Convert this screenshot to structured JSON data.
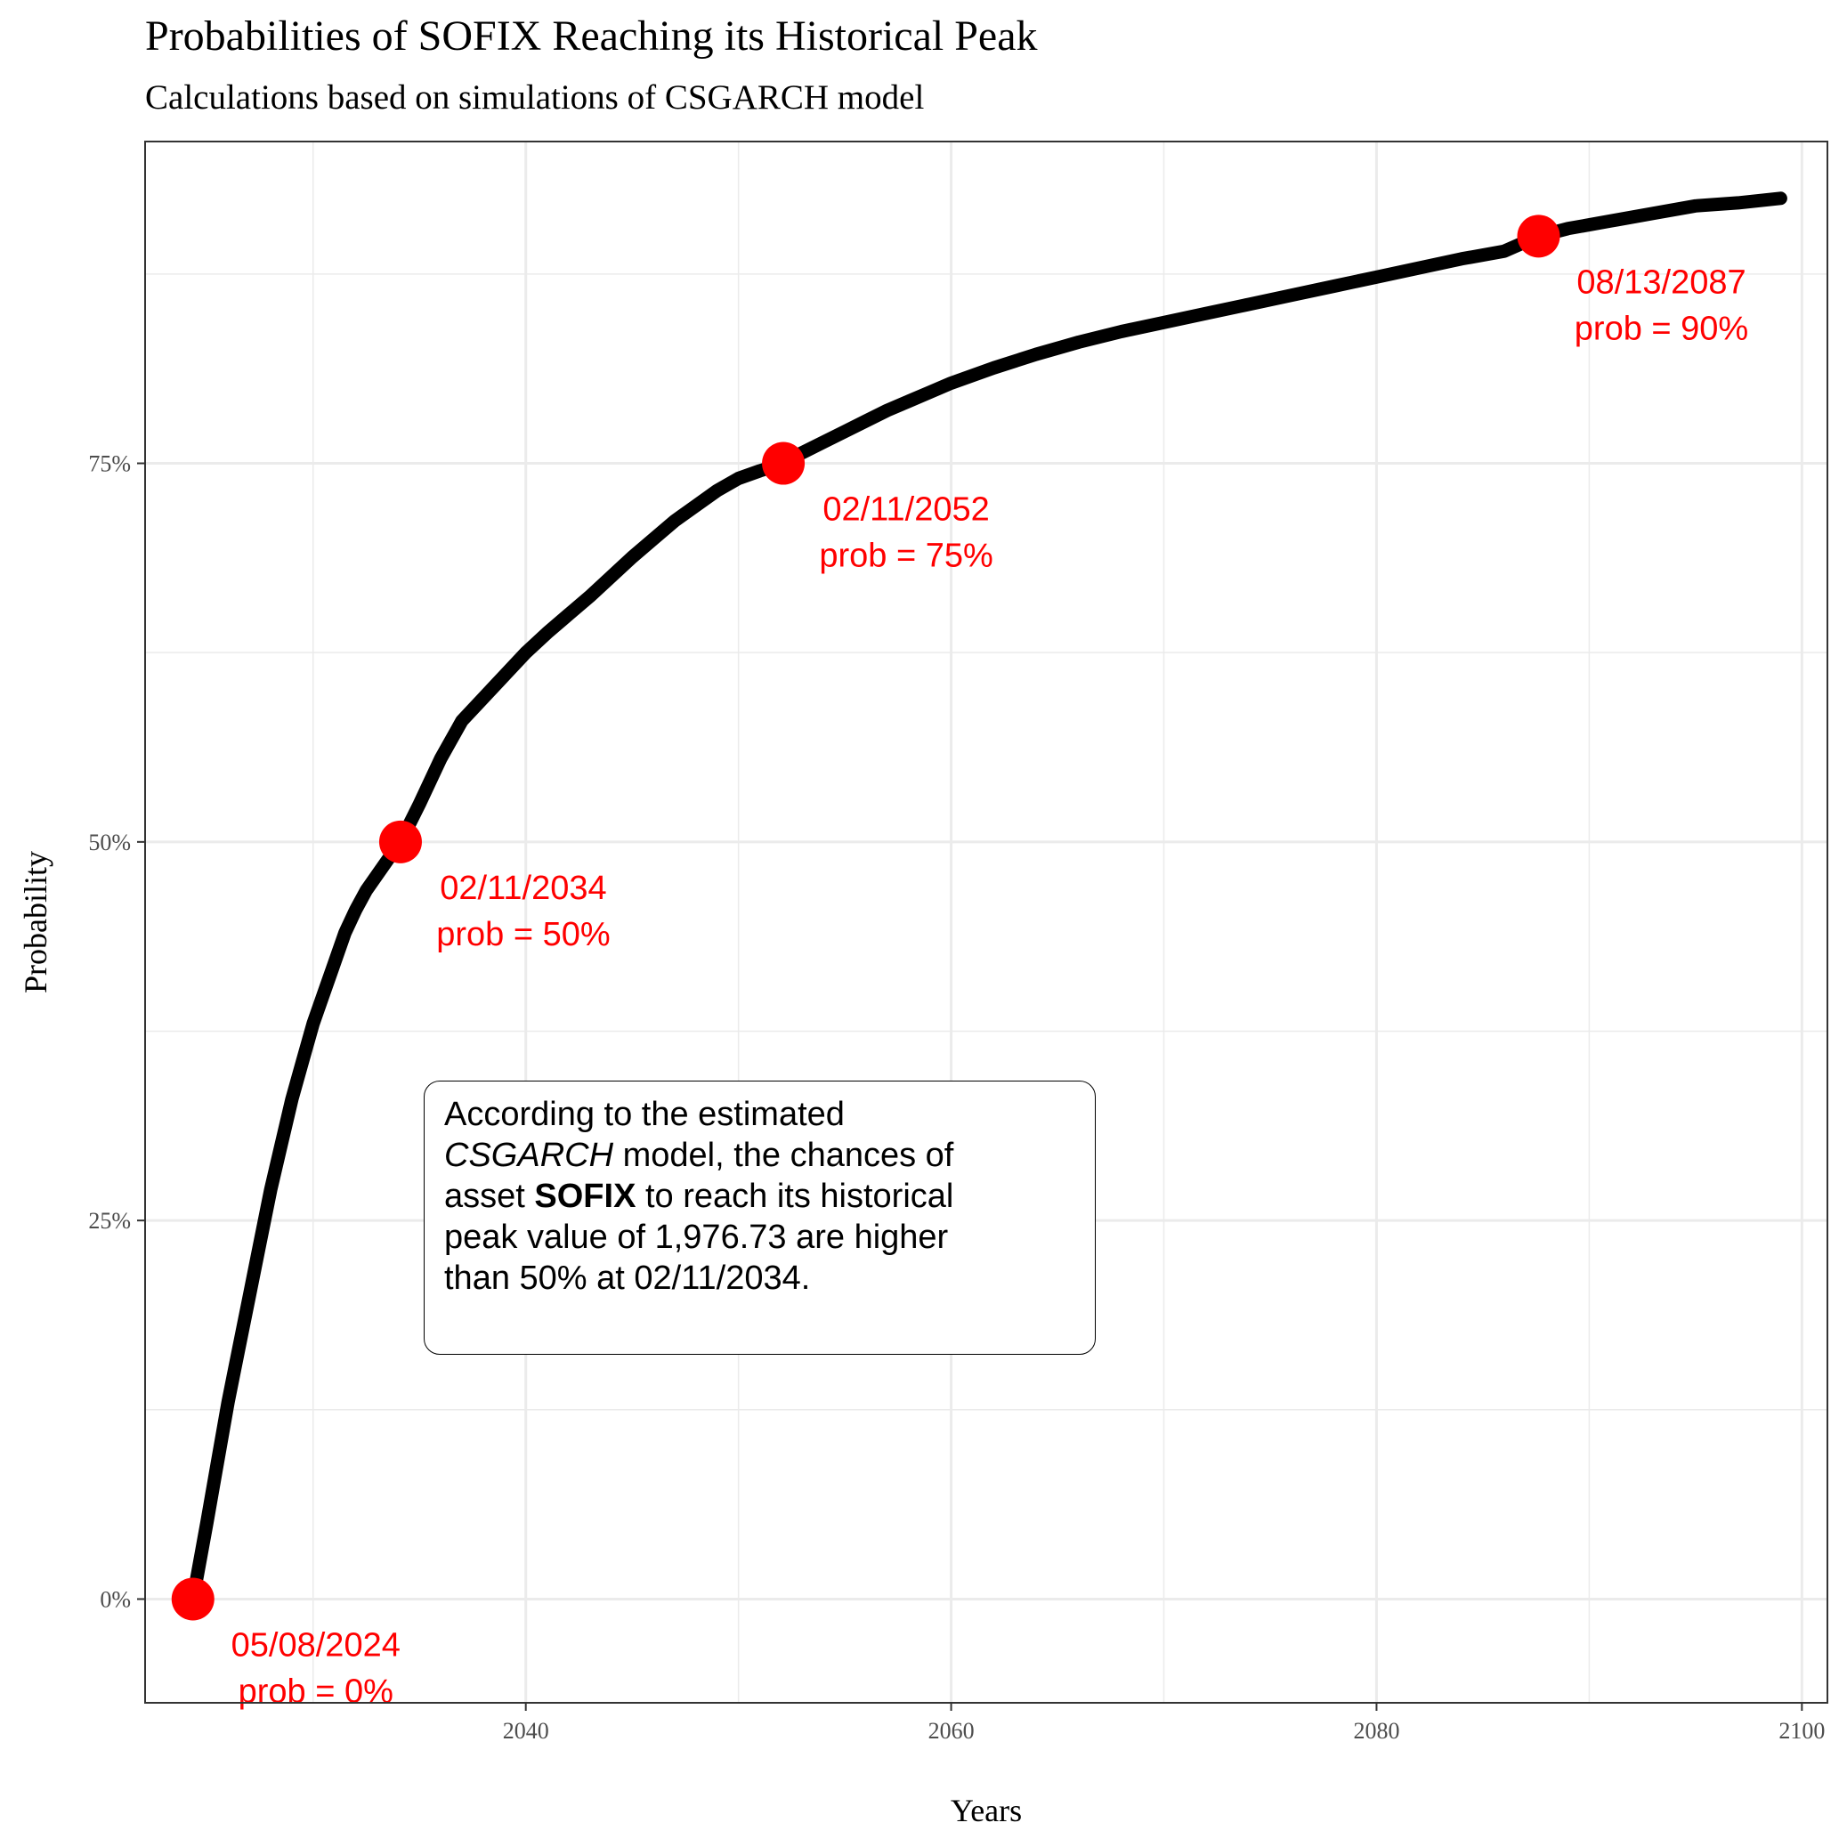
{
  "chart_data": {
    "type": "line",
    "title": "Probabilities of SOFIX Reaching its Historical Peak",
    "subtitle": "Calculations based on simulations of CSGARCH model",
    "xlabel": "Years",
    "ylabel": "Probability",
    "xlim": [
      2022.1,
      2101.2
    ],
    "ylim": [
      -0.0685,
      0.9625
    ],
    "x_ticks": [
      2040,
      2060,
      2080,
      2100
    ],
    "x_tick_labels": [
      "2040",
      "2060",
      "2080",
      "2100"
    ],
    "y_ticks": [
      0,
      0.25,
      0.5,
      0.75
    ],
    "y_tick_labels": [
      "0%",
      "25%",
      "50%",
      "75%"
    ],
    "grid": true,
    "series": [
      {
        "color": "#000000",
        "x": [
          2024.35,
          2025,
          2025.5,
          2026,
          2026.5,
          2027,
          2027.5,
          2028,
          2028.5,
          2029,
          2029.5,
          2030,
          2030.5,
          2031,
          2031.5,
          2032,
          2032.5,
          2033,
          2033.5,
          2034.11,
          2035,
          2036,
          2037,
          2038,
          2039,
          2040,
          2041,
          2042,
          2043,
          2044,
          2045,
          2046,
          2047,
          2048,
          2049,
          2050,
          2051,
          2052.11,
          2053,
          2054,
          2055,
          2056,
          2057,
          2058,
          2059,
          2060,
          2062,
          2064,
          2066,
          2068,
          2070,
          2072,
          2074,
          2076,
          2078,
          2080,
          2082,
          2084,
          2086,
          2087.62,
          2089,
          2091,
          2093,
          2095,
          2097,
          2099
        ],
        "y": [
          0.0,
          0.05,
          0.09,
          0.13,
          0.165,
          0.2,
          0.235,
          0.27,
          0.3,
          0.33,
          0.355,
          0.38,
          0.4,
          0.42,
          0.44,
          0.455,
          0.468,
          0.478,
          0.488,
          0.5,
          0.525,
          0.555,
          0.58,
          0.595,
          0.61,
          0.625,
          0.638,
          0.65,
          0.662,
          0.675,
          0.688,
          0.7,
          0.712,
          0.722,
          0.732,
          0.74,
          0.745,
          0.75,
          0.757,
          0.764,
          0.771,
          0.778,
          0.785,
          0.791,
          0.797,
          0.803,
          0.813,
          0.822,
          0.83,
          0.837,
          0.843,
          0.849,
          0.855,
          0.861,
          0.867,
          0.873,
          0.879,
          0.885,
          0.89,
          0.9,
          0.905,
          0.91,
          0.915,
          0.92,
          0.922,
          0.925
        ]
      }
    ],
    "points": [
      {
        "x": 2024.35,
        "y": 0.0,
        "label_date": "05/08/2024",
        "label_prob": "prob = 0%"
      },
      {
        "x": 2034.11,
        "y": 0.5,
        "label_date": "02/11/2034",
        "label_prob": "prob = 50%"
      },
      {
        "x": 2052.11,
        "y": 0.75,
        "label_date": "02/11/2052",
        "label_prob": "prob = 75%"
      },
      {
        "x": 2087.62,
        "y": 0.9,
        "label_date": "08/13/2087",
        "label_prob": "prob = 90%"
      }
    ],
    "point_color": "#ff0000"
  },
  "note": {
    "line1": "According to the estimated",
    "model": "CSGARCH",
    "line2_rest": " model, the chances of",
    "line3_pre": "asset ",
    "asset": "SOFIX",
    "line3_rest": " to reach its historical",
    "line4": "peak value of 1,976.73 are higher",
    "line5": "than 50% at 02/11/2034."
  }
}
